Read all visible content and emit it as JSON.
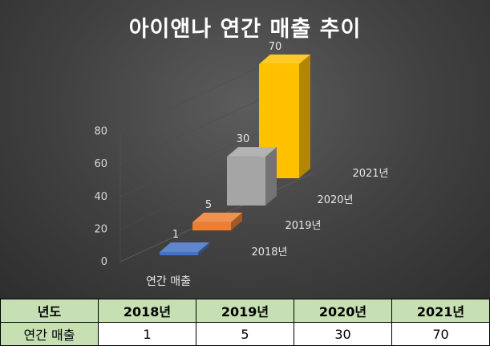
{
  "chart_data": {
    "type": "bar",
    "title": "아이앤나 연간 매출 추이",
    "categories": [
      "2018년",
      "2019년",
      "2020년",
      "2021년"
    ],
    "series": [
      {
        "name": "연간 매출",
        "values": [
          1,
          5,
          30,
          70
        ]
      }
    ],
    "ylim": [
      0,
      80
    ],
    "yticks": [
      0,
      20,
      40,
      60,
      80
    ],
    "data_labels": [
      "1",
      "5",
      "30",
      "70"
    ],
    "colors": [
      "#4472c4",
      "#ed7d31",
      "#a5a5a5",
      "#ffc000"
    ],
    "grid": false,
    "legend": "none"
  },
  "table": {
    "header": [
      "년도",
      "2018년",
      "2019년",
      "2020년",
      "2021년"
    ],
    "row_label": "연간 매출",
    "row_values": [
      "1",
      "5",
      "30",
      "70"
    ]
  }
}
